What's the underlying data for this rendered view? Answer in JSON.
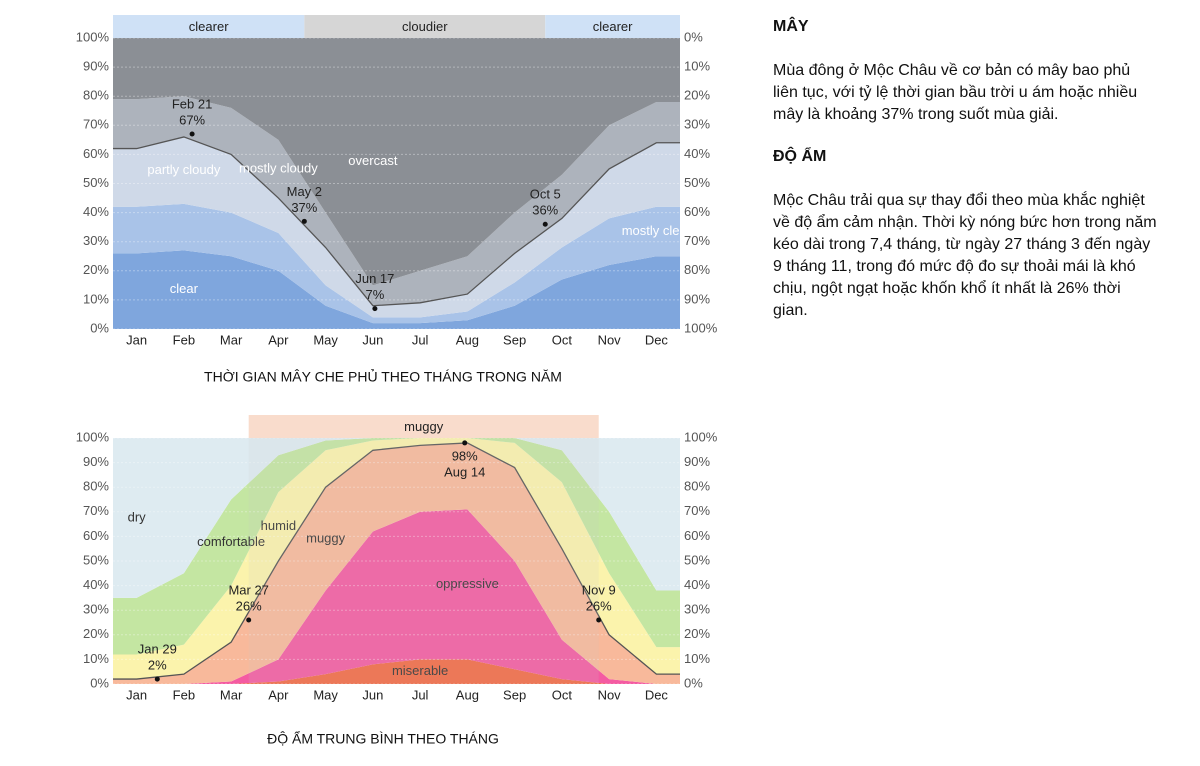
{
  "chart_data": [
    {
      "type": "stacked-area",
      "title": "THỜI GIAN MÂY CHE PHỦ THEO THÁNG TRONG NĂM",
      "categories": [
        "Jan",
        "Feb",
        "Mar",
        "Apr",
        "May",
        "Jun",
        "Jul",
        "Aug",
        "Sep",
        "Oct",
        "Nov",
        "Dec"
      ],
      "series": [
        {
          "name": "clear",
          "color": "#7fa6dd",
          "values": [
            26,
            27,
            25,
            20,
            8,
            2,
            2,
            3,
            8,
            17,
            22,
            25
          ]
        },
        {
          "name": "mostly clear",
          "color": "#a9c3e8",
          "values": [
            16,
            16,
            15,
            13,
            7,
            2,
            2,
            3,
            8,
            11,
            16,
            17
          ]
        },
        {
          "name": "partly cloudy",
          "color": "#cfd9e8",
          "values": [
            20,
            23,
            20,
            12,
            13,
            4,
            5,
            6,
            10,
            10,
            17,
            22
          ]
        },
        {
          "name": "mostly cloudy",
          "color": "#adb3bc",
          "values": [
            17,
            14,
            16,
            20,
            12,
            7,
            11,
            13,
            14,
            15,
            15,
            14
          ]
        },
        {
          "name": "overcast",
          "color": "#8b8f95",
          "values": [
            21,
            20,
            24,
            35,
            60,
            85,
            80,
            75,
            60,
            47,
            30,
            22
          ]
        }
      ],
      "bands": [
        {
          "label": "clearer",
          "color": "#cfe1f6"
        },
        {
          "label": "cloudier",
          "color": "#d6d6d6"
        },
        {
          "label": "clearer",
          "color": "#cfe1f6"
        }
      ],
      "annotations": [
        {
          "date": "Feb 21",
          "value": 67,
          "label": "67%"
        },
        {
          "date": "May 2",
          "value": 37,
          "label": "37%"
        },
        {
          "date": "Jun 17",
          "value": 7,
          "label": "7%"
        },
        {
          "date": "Oct 5",
          "value": 36,
          "label": "36%"
        }
      ],
      "ylim": [
        0,
        100
      ],
      "yticks": [
        {
          "value": 0,
          "label": "0%"
        },
        {
          "value": 10,
          "label": "10%"
        },
        {
          "value": 20,
          "label": "20%"
        },
        {
          "value": 30,
          "label": "30%"
        },
        {
          "value": 40,
          "label": "40%"
        },
        {
          "value": 50,
          "label": "50%"
        },
        {
          "value": 60,
          "label": "60%"
        },
        {
          "value": 70,
          "label": "70%"
        },
        {
          "value": 80,
          "label": "80%"
        },
        {
          "value": 90,
          "label": "90%"
        },
        {
          "value": 100,
          "label": "100%"
        }
      ],
      "y2lim": [
        100,
        0
      ],
      "y2ticks": [
        {
          "value": 0,
          "label": "0%"
        },
        {
          "value": 10,
          "label": "10%"
        },
        {
          "value": 20,
          "label": "20%"
        },
        {
          "value": 30,
          "label": "30%"
        },
        {
          "value": 40,
          "label": "40%"
        },
        {
          "value": 50,
          "label": "50%"
        },
        {
          "value": 60,
          "label": "60%"
        },
        {
          "value": 70,
          "label": "70%"
        },
        {
          "value": 80,
          "label": "80%"
        },
        {
          "value": 90,
          "label": "90%"
        },
        {
          "value": 100,
          "label": "100%"
        }
      ],
      "grid": true
    },
    {
      "type": "stacked-area",
      "title": "ĐỘ ẨM TRUNG BÌNH THEO THÁNG",
      "categories": [
        "Jan",
        "Feb",
        "Mar",
        "Apr",
        "May",
        "Jun",
        "Jul",
        "Aug",
        "Sep",
        "Oct",
        "Nov",
        "Dec"
      ],
      "series": [
        {
          "name": "miserable",
          "color": "#f26a45",
          "values": [
            0,
            0,
            0,
            1,
            4,
            8,
            10,
            10,
            6,
            2,
            0,
            0
          ]
        },
        {
          "name": "oppressive",
          "color": "#f45ba2",
          "values": [
            0,
            0,
            1,
            9,
            34,
            54,
            60,
            61,
            44,
            16,
            2,
            0
          ]
        },
        {
          "name": "muggy",
          "color": "#f8b99b",
          "values": [
            2,
            4,
            16,
            40,
            42,
            33,
            27,
            27,
            38,
            37,
            18,
            4
          ]
        },
        {
          "name": "humid",
          "color": "#fbf3ac",
          "values": [
            10,
            12,
            23,
            28,
            15,
            4,
            3,
            2,
            10,
            27,
            25,
            11
          ]
        },
        {
          "name": "comfortable",
          "color": "#c4e6a2",
          "values": [
            23,
            29,
            35,
            15,
            4,
            1,
            0,
            0,
            2,
            13,
            25,
            23
          ]
        },
        {
          "name": "dry",
          "color": "#deebf1",
          "values": [
            65,
            55,
            25,
            7,
            1,
            0,
            0,
            0,
            0,
            5,
            30,
            62
          ]
        }
      ],
      "bands": [
        {
          "label": "muggy",
          "color": "#f9dccc"
        }
      ],
      "annotations": [
        {
          "date": "Jan 29",
          "value": 2,
          "label": "2%"
        },
        {
          "date": "Mar 27",
          "value": 26,
          "label": "26%"
        },
        {
          "date": "Aug 14",
          "value": 98,
          "label": "98%"
        },
        {
          "date": "Nov 9",
          "value": 26,
          "label": "26%"
        }
      ],
      "ylim": [
        0,
        100
      ],
      "yticks": [
        {
          "value": 0,
          "label": "0%"
        },
        {
          "value": 10,
          "label": "10%"
        },
        {
          "value": 20,
          "label": "20%"
        },
        {
          "value": 30,
          "label": "30%"
        },
        {
          "value": 40,
          "label": "40%"
        },
        {
          "value": 50,
          "label": "50%"
        },
        {
          "value": 60,
          "label": "60%"
        },
        {
          "value": 70,
          "label": "70%"
        },
        {
          "value": 80,
          "label": "80%"
        },
        {
          "value": 90,
          "label": "90%"
        },
        {
          "value": 100,
          "label": "100%"
        }
      ],
      "y2lim": [
        0,
        100
      ],
      "y2ticks": [
        {
          "value": 0,
          "label": "0%"
        },
        {
          "value": 10,
          "label": "10%"
        },
        {
          "value": 20,
          "label": "20%"
        },
        {
          "value": 30,
          "label": "30%"
        },
        {
          "value": 40,
          "label": "40%"
        },
        {
          "value": 50,
          "label": "50%"
        },
        {
          "value": 60,
          "label": "60%"
        },
        {
          "value": 70,
          "label": "70%"
        },
        {
          "value": 80,
          "label": "80%"
        },
        {
          "value": 90,
          "label": "90%"
        },
        {
          "value": 100,
          "label": "100%"
        }
      ],
      "grid": true
    }
  ],
  "sections": [
    {
      "heading": "MÂY",
      "text": "Mùa đông ở Mộc Châu về cơ bản có mây bao phủ liên tục, với tỷ lệ thời gian bầu trời u ám hoặc nhiều mây là khoảng 37% trong suốt mùa giải."
    },
    {
      "heading": "ĐỘ ẨM",
      "text": "Mộc Châu trải qua sự thay đổi theo mùa khắc nghiệt về độ ẩm cảm nhận. Thời kỳ nóng bức hơn trong năm kéo dài trong 7,4 tháng, từ ngày 27 tháng 3 đến ngày 9 tháng 11, trong đó mức độ đo sự thoải mái là khó chịu, ngột ngạt hoặc khốn khổ ít nhất là 26% thời gian."
    }
  ]
}
